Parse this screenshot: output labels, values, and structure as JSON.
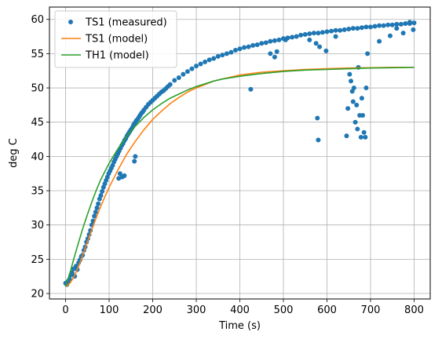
{
  "chart_data": {
    "type": "line",
    "xlabel": "Time (s)",
    "ylabel": "deg C",
    "xlim": [
      -37,
      837
    ],
    "ylim": [
      19.2,
      61.8
    ],
    "xticks": [
      0,
      100,
      200,
      300,
      400,
      500,
      600,
      700,
      800
    ],
    "yticks": [
      20,
      25,
      30,
      35,
      40,
      45,
      50,
      55,
      60
    ],
    "grid": true,
    "legend_position": "top-left",
    "series": [
      {
        "name": "TS1 (measured)",
        "kind": "scatter",
        "color": "#1f77b4",
        "x": [
          0,
          3,
          6,
          9,
          12,
          15,
          18,
          21,
          24,
          27,
          30,
          33,
          36,
          39,
          42,
          45,
          48,
          51,
          54,
          57,
          60,
          63,
          66,
          69,
          72,
          75,
          78,
          81,
          84,
          87,
          90,
          93,
          96,
          99,
          102,
          105,
          108,
          111,
          114,
          117,
          120,
          123,
          126,
          129,
          132,
          135,
          138,
          141,
          144,
          147,
          150,
          153,
          156,
          159,
          162,
          165,
          168,
          171,
          174,
          177,
          180,
          185,
          190,
          195,
          200,
          205,
          210,
          215,
          220,
          225,
          230,
          235,
          240,
          250,
          260,
          270,
          280,
          290,
          300,
          310,
          320,
          330,
          340,
          350,
          360,
          370,
          380,
          390,
          400,
          410,
          420,
          430,
          440,
          450,
          460,
          470,
          480,
          490,
          500,
          510,
          520,
          530,
          540,
          550,
          560,
          570,
          580,
          590,
          600,
          610,
          620,
          630,
          640,
          650,
          660,
          670,
          680,
          690,
          700,
          710,
          720,
          730,
          740,
          750,
          760,
          770,
          780,
          790,
          800,
          130,
          125,
          122,
          135,
          158,
          160,
          425,
          470,
          480,
          485,
          505,
          560,
          575,
          578,
          580,
          583,
          598,
          620,
          645,
          648,
          652,
          655,
          658,
          660,
          662,
          665,
          668,
          670,
          672,
          675,
          678,
          680,
          682,
          685,
          688,
          690,
          693,
          720,
          745,
          760,
          775,
          790,
          798
        ],
        "y": [
          21.5,
          21.3,
          21.8,
          22.1,
          22.7,
          23.0,
          23.6,
          22.5,
          24.0,
          23.5,
          24.5,
          24.9,
          25.4,
          25.6,
          26.3,
          26.8,
          27.5,
          28.0,
          28.6,
          29.2,
          30.0,
          30.6,
          31.3,
          31.9,
          32.5,
          33.1,
          33.8,
          34.3,
          34.9,
          35.5,
          36.0,
          36.5,
          37.0,
          37.5,
          37.9,
          38.3,
          38.7,
          39.2,
          39.6,
          40.0,
          40.4,
          40.8,
          41.2,
          41.6,
          41.9,
          42.3,
          42.6,
          43.0,
          43.3,
          43.6,
          43.9,
          44.2,
          44.6,
          44.9,
          45.2,
          45.4,
          45.7,
          46.0,
          46.3,
          46.5,
          46.8,
          47.2,
          47.6,
          47.9,
          48.2,
          48.5,
          48.8,
          49.1,
          49.4,
          49.6,
          49.9,
          50.2,
          50.5,
          51.1,
          51.5,
          52.0,
          52.4,
          52.8,
          53.2,
          53.5,
          53.8,
          54.1,
          54.3,
          54.6,
          54.8,
          55.0,
          55.2,
          55.5,
          55.7,
          55.9,
          56.0,
          56.2,
          56.3,
          56.5,
          56.6,
          56.8,
          56.9,
          57.0,
          57.2,
          57.3,
          57.4,
          57.5,
          57.7,
          57.8,
          57.9,
          58.0,
          58.0,
          58.1,
          58.2,
          58.3,
          58.4,
          58.4,
          58.5,
          58.6,
          58.7,
          58.7,
          58.8,
          58.9,
          58.9,
          59.0,
          59.1,
          59.1,
          59.2,
          59.2,
          59.3,
          59.3,
          59.4,
          59.4,
          59.5,
          37.0,
          37.5,
          36.8,
          37.2,
          39.3,
          40.0,
          49.8,
          55.0,
          54.5,
          55.3,
          57.0,
          57.0,
          56.5,
          45.6,
          42.4,
          56.0,
          55.4,
          57.5,
          43.0,
          47.0,
          52.0,
          51.0,
          49.5,
          48.0,
          50.0,
          45.0,
          47.5,
          44.0,
          53.0,
          46.0,
          42.8,
          48.5,
          46.0,
          43.5,
          42.8,
          50.0,
          55.0,
          56.8,
          57.6,
          58.7,
          58.0,
          59.6,
          58.5
        ],
        "y_range_observed": [
          20,
          60
        ]
      },
      {
        "name": "TS1 (model)",
        "kind": "line",
        "color": "#ff7f0e",
        "x": [
          0,
          10,
          20,
          30,
          40,
          50,
          60,
          70,
          80,
          90,
          100,
          120,
          140,
          160,
          180,
          200,
          220,
          240,
          260,
          280,
          300,
          320,
          340,
          360,
          380,
          400,
          450,
          500,
          550,
          600,
          650,
          700,
          750,
          800
        ],
        "y": [
          21.0,
          21.5,
          22.5,
          24.0,
          25.7,
          27.5,
          29.3,
          31.0,
          32.6,
          34.1,
          35.5,
          38.0,
          40.3,
          42.2,
          43.9,
          45.4,
          46.6,
          47.7,
          48.6,
          49.4,
          50.0,
          50.5,
          51.0,
          51.3,
          51.6,
          51.9,
          52.3,
          52.5,
          52.7,
          52.8,
          52.9,
          52.95,
          53.0,
          53.0
        ]
      },
      {
        "name": "TH1 (model)",
        "kind": "line",
        "color": "#2ca02c",
        "x": [
          0,
          10,
          20,
          30,
          40,
          50,
          60,
          70,
          80,
          90,
          100,
          120,
          140,
          160,
          180,
          200,
          220,
          240,
          260,
          280,
          300,
          320,
          340,
          360,
          380,
          400,
          450,
          500,
          550,
          600,
          650,
          700,
          750,
          800
        ],
        "y": [
          21.0,
          23.0,
          25.3,
          27.5,
          29.6,
          31.5,
          33.3,
          35.0,
          36.5,
          37.8,
          39.0,
          41.1,
          42.9,
          44.4,
          45.7,
          46.8,
          47.7,
          48.5,
          49.1,
          49.7,
          50.2,
          50.6,
          51.0,
          51.3,
          51.5,
          51.7,
          52.1,
          52.4,
          52.6,
          52.7,
          52.8,
          52.9,
          52.95,
          53.0
        ]
      }
    ]
  }
}
